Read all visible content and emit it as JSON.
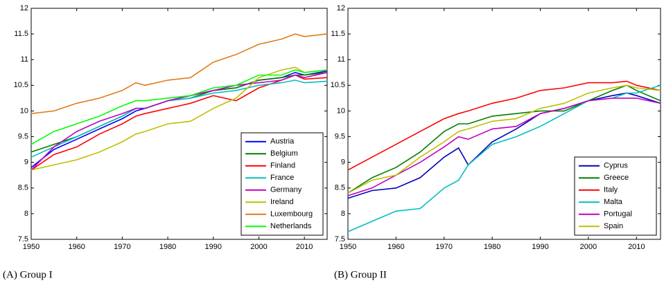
{
  "chart_data": [
    {
      "type": "line",
      "caption": "(A) Group I",
      "x": [
        1950,
        1955,
        1960,
        1965,
        1970,
        1973,
        1975,
        1980,
        1985,
        1990,
        1995,
        2000,
        2005,
        2008,
        2010,
        2015
      ],
      "xlim": [
        1950,
        2015
      ],
      "xticks": [
        1950,
        1960,
        1970,
        1980,
        1990,
        2000,
        2010
      ],
      "ylim": [
        7.5,
        12
      ],
      "yticks": [
        7.5,
        8,
        8.5,
        9,
        9.5,
        10,
        10.5,
        11,
        11.5,
        12
      ],
      "legend": "lower-right",
      "series": [
        {
          "name": "Austria",
          "color": "#0000ff",
          "values": [
            8.9,
            9.25,
            9.45,
            9.65,
            9.85,
            10.0,
            10.05,
            10.2,
            10.3,
            10.4,
            10.45,
            10.6,
            10.65,
            10.75,
            10.7,
            10.78
          ]
        },
        {
          "name": "Belgium",
          "color": "#007f00",
          "values": [
            9.2,
            9.35,
            9.5,
            9.7,
            9.9,
            10.05,
            10.05,
            10.2,
            10.25,
            10.4,
            10.45,
            10.6,
            10.65,
            10.7,
            10.7,
            10.75
          ]
        },
        {
          "name": "Finland",
          "color": "#ff0000",
          "values": [
            8.85,
            9.15,
            9.3,
            9.55,
            9.75,
            9.9,
            9.95,
            10.05,
            10.15,
            10.3,
            10.2,
            10.45,
            10.6,
            10.7,
            10.62,
            10.65
          ]
        },
        {
          "name": "France",
          "color": "#00bfbf",
          "values": [
            9.1,
            9.3,
            9.5,
            9.7,
            9.9,
            10.05,
            10.05,
            10.2,
            10.25,
            10.35,
            10.4,
            10.5,
            10.55,
            10.6,
            10.55,
            10.58
          ]
        },
        {
          "name": "Germany",
          "color": "#bf00bf",
          "values": [
            8.85,
            9.3,
            9.6,
            9.8,
            9.95,
            10.05,
            10.05,
            10.2,
            10.3,
            10.4,
            10.5,
            10.55,
            10.6,
            10.7,
            10.65,
            10.75
          ]
        },
        {
          "name": "Ireland",
          "color": "#bfbf00",
          "values": [
            8.85,
            8.95,
            9.05,
            9.2,
            9.4,
            9.55,
            9.6,
            9.75,
            9.8,
            10.05,
            10.25,
            10.65,
            10.8,
            10.85,
            10.75,
            10.8
          ]
        },
        {
          "name": "Luxembourg",
          "color": "#e07b16",
          "values": [
            9.95,
            10.0,
            10.15,
            10.25,
            10.4,
            10.55,
            10.5,
            10.6,
            10.65,
            10.95,
            11.1,
            11.3,
            11.4,
            11.5,
            11.45,
            11.5
          ]
        },
        {
          "name": "Netherlands",
          "color": "#00ff00",
          "values": [
            9.35,
            9.6,
            9.75,
            9.9,
            10.1,
            10.2,
            10.2,
            10.25,
            10.3,
            10.45,
            10.5,
            10.7,
            10.7,
            10.8,
            10.75,
            10.8
          ]
        }
      ]
    },
    {
      "type": "line",
      "caption": "(B) Group II",
      "x": [
        1950,
        1955,
        1960,
        1965,
        1970,
        1973,
        1975,
        1980,
        1985,
        1990,
        1995,
        2000,
        2005,
        2008,
        2010,
        2015
      ],
      "xlim": [
        1950,
        2015
      ],
      "xticks": [
        1950,
        1960,
        1970,
        1980,
        1990,
        2000,
        2010
      ],
      "ylim": [
        7.5,
        12
      ],
      "yticks": [
        7.5,
        8,
        8.5,
        9,
        9.5,
        10,
        10.5,
        11,
        11.5,
        12
      ],
      "legend": "lower-right",
      "series": [
        {
          "name": "Cyprus",
          "color": "#0000c0",
          "values": [
            8.3,
            8.45,
            8.5,
            8.7,
            9.1,
            9.28,
            8.95,
            9.4,
            9.65,
            9.95,
            10.05,
            10.2,
            10.3,
            10.35,
            10.3,
            10.15
          ]
        },
        {
          "name": "Greece",
          "color": "#007f00",
          "values": [
            8.4,
            8.7,
            8.9,
            9.2,
            9.6,
            9.75,
            9.75,
            9.9,
            9.95,
            10.0,
            10.0,
            10.2,
            10.4,
            10.5,
            10.4,
            10.2
          ]
        },
        {
          "name": "Italy",
          "color": "#ff0000",
          "values": [
            8.85,
            9.1,
            9.35,
            9.6,
            9.85,
            9.95,
            10.0,
            10.15,
            10.25,
            10.4,
            10.45,
            10.55,
            10.55,
            10.58,
            10.5,
            10.4
          ]
        },
        {
          "name": "Malta",
          "color": "#00bfbf",
          "values": [
            7.65,
            7.85,
            8.05,
            8.1,
            8.5,
            8.65,
            8.95,
            9.35,
            9.5,
            9.7,
            9.95,
            10.2,
            10.25,
            10.35,
            10.35,
            10.5
          ]
        },
        {
          "name": "Portugal",
          "color": "#bf00bf",
          "values": [
            8.35,
            8.5,
            8.75,
            9.0,
            9.3,
            9.5,
            9.45,
            9.65,
            9.7,
            9.95,
            10.05,
            10.2,
            10.25,
            10.25,
            10.25,
            10.15
          ]
        },
        {
          "name": "Spain",
          "color": "#bfbf00",
          "values": [
            8.4,
            8.65,
            8.75,
            9.1,
            9.4,
            9.6,
            9.65,
            9.8,
            9.85,
            10.05,
            10.15,
            10.35,
            10.45,
            10.5,
            10.45,
            10.4
          ]
        }
      ]
    }
  ]
}
